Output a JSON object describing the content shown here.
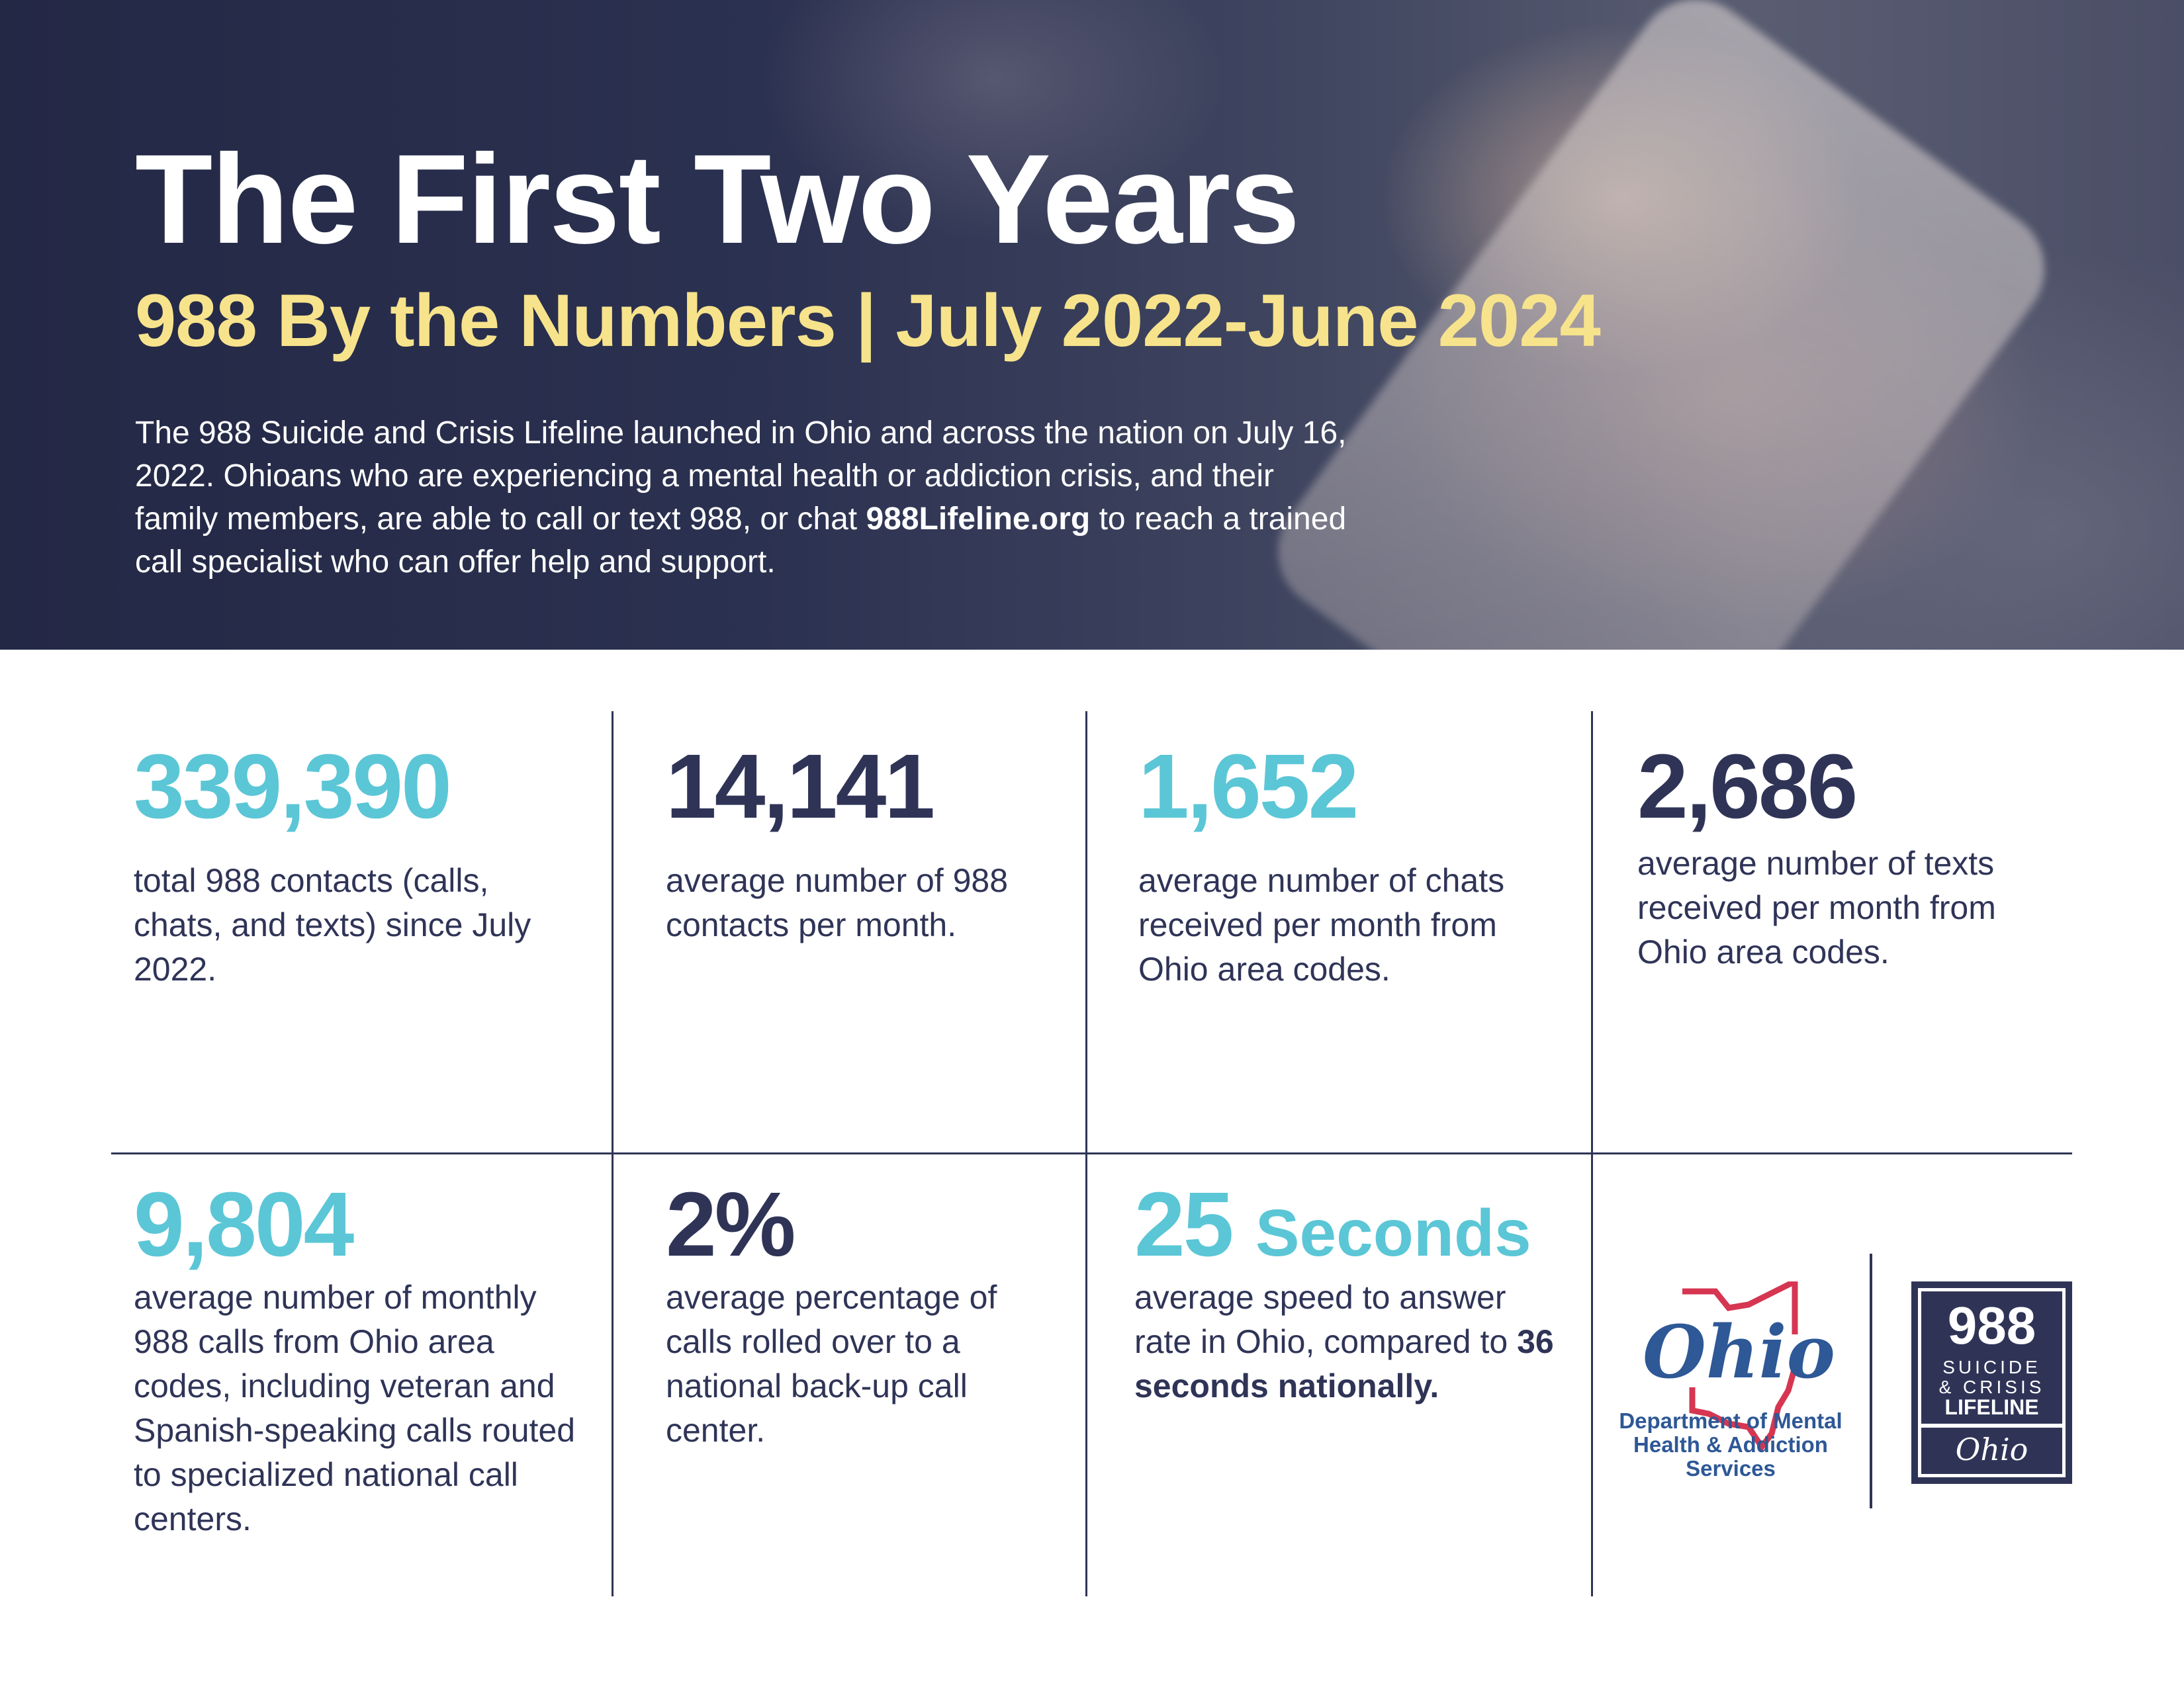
{
  "header": {
    "title": "The First Two Years",
    "subtitle": "988 By the Numbers | July 2022-June 2024",
    "intro_before": "The 988 Suicide and Crisis Lifeline launched in Ohio and across the nation on July 16, 2022. Ohioans who are experiencing a mental health or addiction crisis, and their family members, are able to call or text 988, or chat ",
    "intro_link": "988Lifeline.org",
    "intro_after": " to reach a trained call specialist who can offer help and support."
  },
  "stats": [
    {
      "value": "339,390",
      "description": "total 988 contacts (calls, chats, and texts) since July 2022."
    },
    {
      "value": "14,141",
      "description": "average number of 988 contacts per month."
    },
    {
      "value": "1,652",
      "description": "average number of chats received per month from Ohio area codes."
    },
    {
      "value": "2,686",
      "description": "average number of texts received per month from Ohio area codes."
    },
    {
      "value": "9,804",
      "description": "average number of monthly 988 calls from Ohio area codes, including veteran and Spanish-speaking calls routed to specialized national call centers."
    },
    {
      "value": "2%",
      "description": "average percentage of calls rolled over to a national back-up call center."
    },
    {
      "value": "25",
      "unit": "Seconds",
      "description": "average speed to answer rate in Ohio, compared to ",
      "description_bold": "36 seconds nationally."
    }
  ],
  "logos": {
    "ohio_script": "Ohio",
    "department": "Department of Mental Health & Addiction Services",
    "lifeline_number": "988",
    "lifeline_line1": "SUICIDE",
    "lifeline_line2": "& CRISIS",
    "lifeline_line3": "LIFELINE",
    "lifeline_ohio": "Ohio"
  },
  "colors": {
    "teal": "#5bc6d6",
    "navy": "#2f3457",
    "yellow": "#f7e38c",
    "ohio_red": "#d63651",
    "ohio_blue": "#2e5896"
  }
}
